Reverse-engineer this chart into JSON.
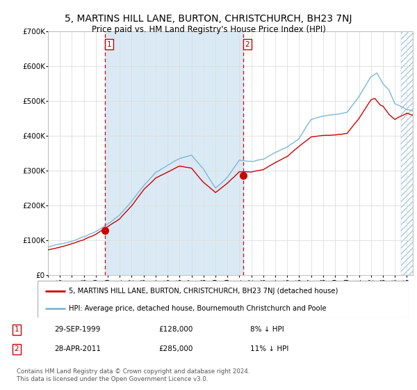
{
  "title": "5, MARTINS HILL LANE, BURTON, CHRISTCHURCH, BH23 7NJ",
  "subtitle": "Price paid vs. HM Land Registry's House Price Index (HPI)",
  "legend_line1": "5, MARTINS HILL LANE, BURTON, CHRISTCHURCH, BH23 7NJ (detached house)",
  "legend_line2": "HPI: Average price, detached house, Bournemouth Christchurch and Poole",
  "transaction1_label": "1",
  "transaction1_date": "29-SEP-1999",
  "transaction1_price": "£128,000",
  "transaction1_hpi": "8% ↓ HPI",
  "transaction2_label": "2",
  "transaction2_date": "28-APR-2011",
  "transaction2_price": "£285,000",
  "transaction2_hpi": "11% ↓ HPI",
  "footer": "Contains HM Land Registry data © Crown copyright and database right 2024.\nThis data is licensed under the Open Government Licence v3.0.",
  "hpi_color": "#7ab8d9",
  "price_color": "#cc0000",
  "marker_color": "#cc0000",
  "vline_color": "#cc0000",
  "bg_shaded_color": "#daeaf5",
  "ylim": [
    0,
    700000
  ],
  "yticks": [
    0,
    100000,
    200000,
    300000,
    400000,
    500000,
    600000,
    700000
  ],
  "transaction1_x": 1999.75,
  "transaction2_x": 2011.33,
  "transaction1_y": 128000,
  "transaction2_y": 285000,
  "xmin": 1995.0,
  "xmax": 2025.5,
  "hatch_start": 2024.5
}
